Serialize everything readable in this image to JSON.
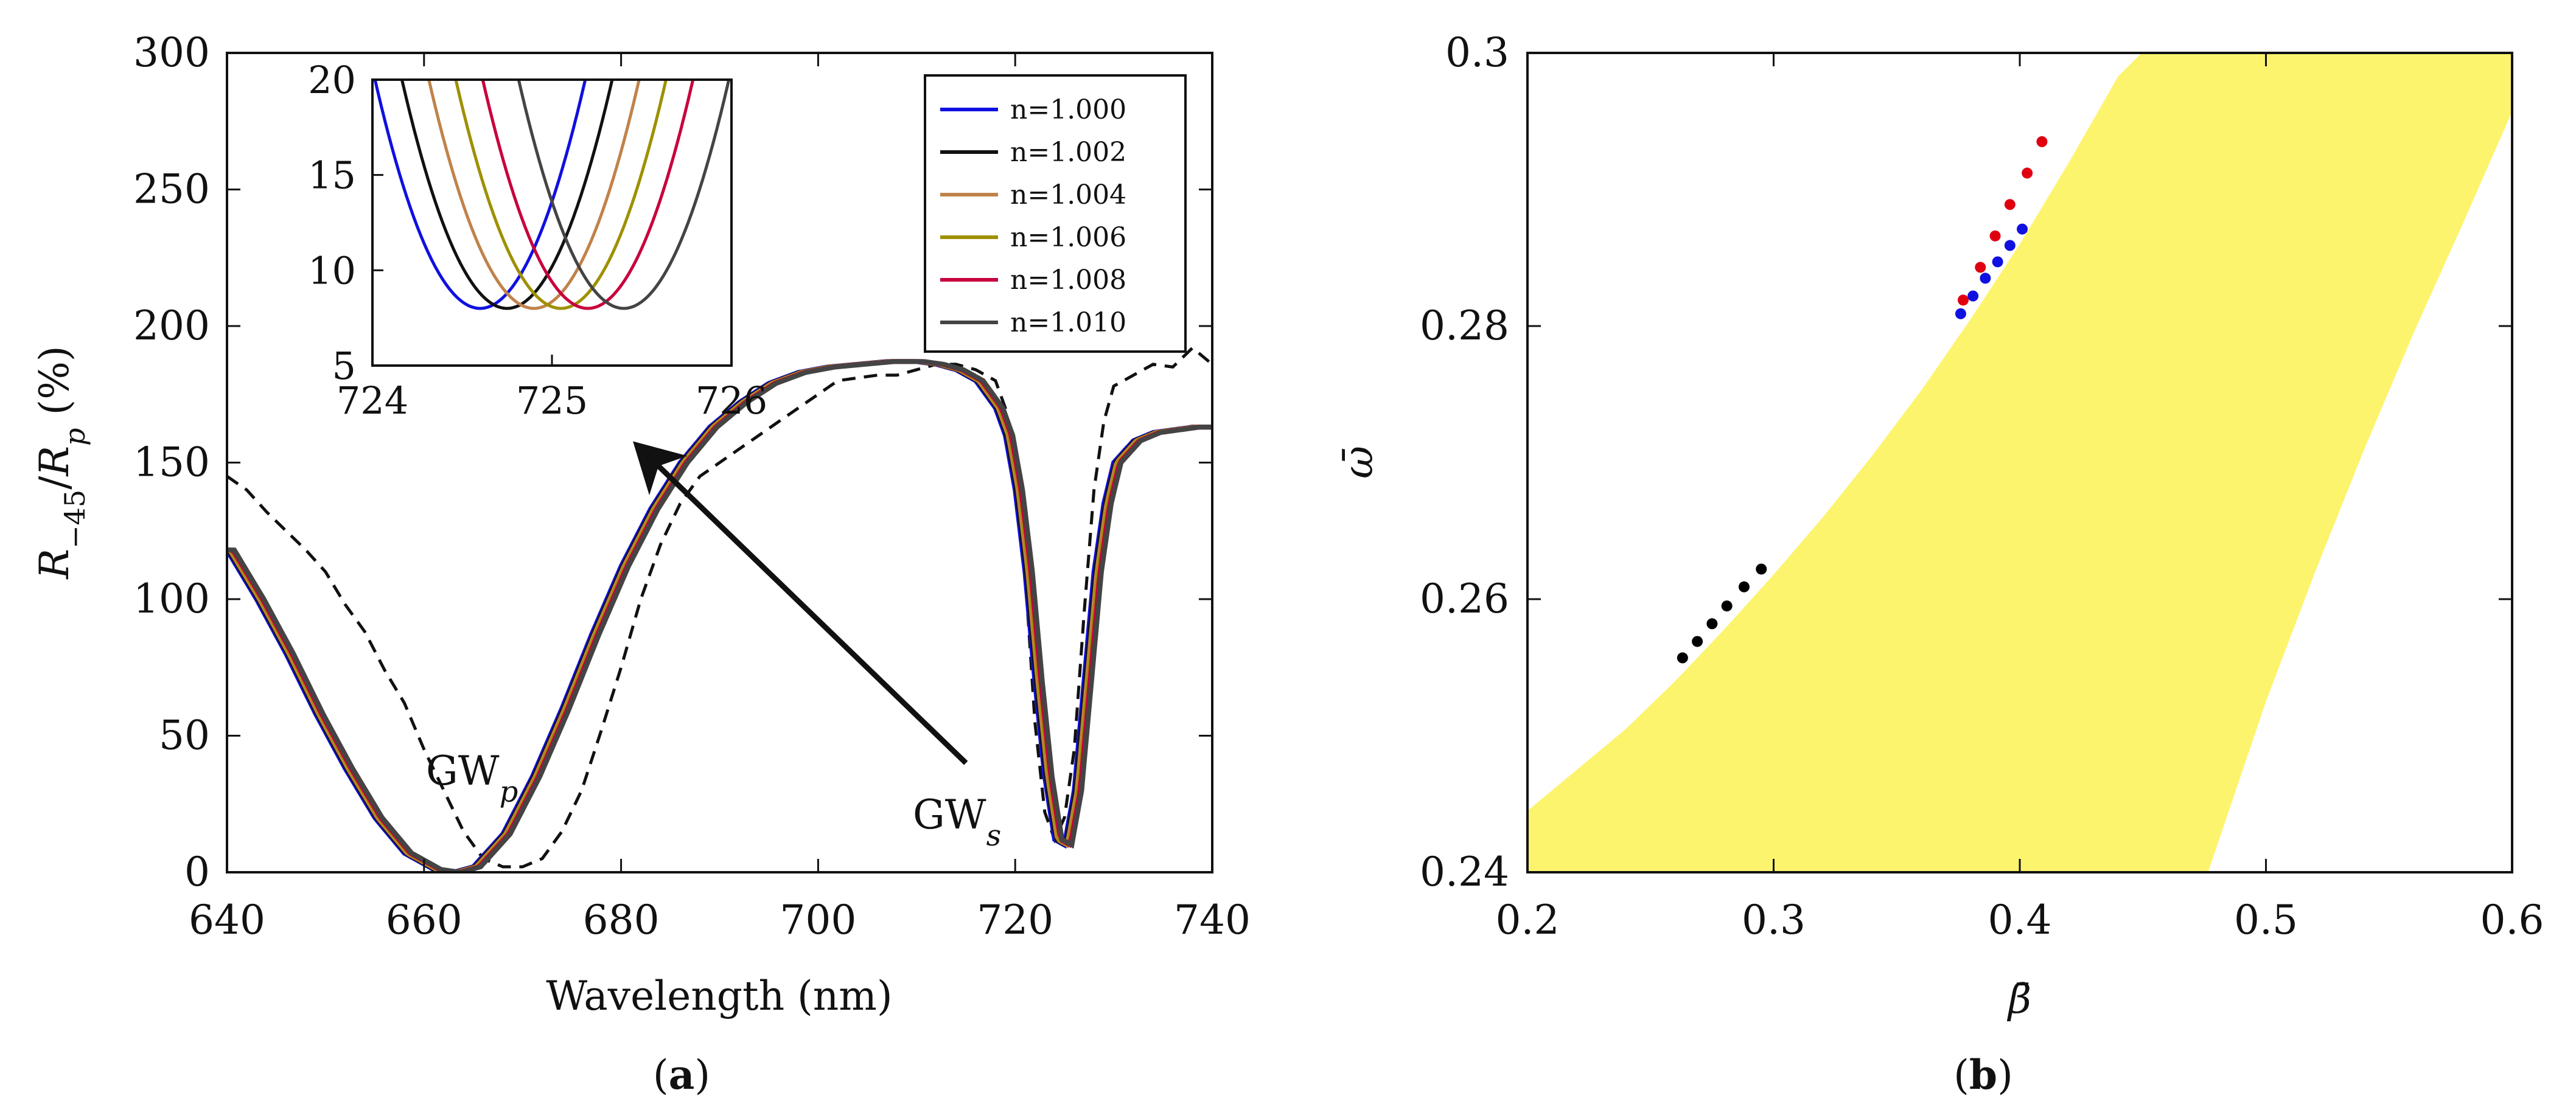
{
  "chart_data": [
    {
      "id": "a",
      "type": "line",
      "caption_letter": "a",
      "xlabel": "Wavelength (nm)",
      "ylabel": {
        "base": "R",
        "sub": "−45",
        "mid": "/",
        "base2": "R",
        "sub2": "p",
        "unit": " (%)"
      },
      "xlim": [
        640,
        740
      ],
      "ylim": [
        0,
        300
      ],
      "xticks": [
        "640",
        "660",
        "680",
        "700",
        "720",
        "740"
      ],
      "yticks": [
        "0",
        "50",
        "100",
        "150",
        "200",
        "250",
        "300"
      ],
      "x_tick_values": [
        640,
        660,
        680,
        700,
        720,
        740
      ],
      "y_tick_values": [
        0,
        50,
        100,
        150,
        200,
        250,
        300
      ],
      "annotations": {
        "gwp": {
          "base": "GW",
          "sub": "p"
        },
        "gws": {
          "base": "GW",
          "sub": "s"
        },
        "arrow": {
          "from": [
            715,
            40
          ],
          "to": [
            682,
            155
          ]
        }
      },
      "legend": [
        {
          "label": "n=1.000",
          "color": "#1010e0"
        },
        {
          "label": "n=1.002",
          "color": "#111111"
        },
        {
          "label": "n=1.004",
          "color": "#c0824a"
        },
        {
          "label": "n=1.006",
          "color": "#9e9000"
        },
        {
          "label": "n=1.008",
          "color": "#c8003c"
        },
        {
          "label": "n=1.010",
          "color": "#444444"
        }
      ],
      "series": [
        {
          "name": "n=1.000",
          "color": "#1010e0",
          "shift": 0.0
        },
        {
          "name": "n=1.002",
          "color": "#111111",
          "shift": 0.15
        },
        {
          "name": "n=1.004",
          "color": "#c0824a",
          "shift": 0.3
        },
        {
          "name": "n=1.006",
          "color": "#9e9000",
          "shift": 0.45
        },
        {
          "name": "n=1.008",
          "color": "#c8003c",
          "shift": 0.6
        },
        {
          "name": "n=1.010",
          "color": "#444444",
          "shift": 0.75
        }
      ],
      "base_curve": {
        "x": [
          640,
          643,
          646,
          649,
          652,
          655,
          658,
          661,
          663,
          665,
          668,
          671,
          674,
          677,
          680,
          683,
          686,
          689,
          692,
          695,
          698,
          701,
          704,
          707,
          710,
          712,
          714,
          716,
          718,
          719,
          720,
          721,
          722,
          723,
          724,
          725,
          726,
          727,
          728,
          729,
          730,
          732,
          734,
          736,
          738,
          740
        ],
        "y": [
          118,
          100,
          80,
          58,
          38,
          20,
          7,
          1,
          0,
          2,
          14,
          35,
          60,
          87,
          112,
          133,
          150,
          163,
          172,
          179,
          183,
          185,
          186,
          187,
          187,
          186,
          184,
          180,
          170,
          160,
          140,
          110,
          70,
          35,
          12,
          10,
          30,
          70,
          110,
          135,
          150,
          158,
          161,
          162,
          163,
          163
        ]
      },
      "measured": {
        "x": [
          640,
          642,
          644,
          646,
          648,
          650,
          652,
          654,
          656,
          658,
          660,
          662,
          664,
          666,
          668,
          670,
          672,
          674,
          676,
          678,
          680,
          682,
          684,
          686,
          688,
          690,
          692,
          694,
          696,
          698,
          700,
          702,
          704,
          706,
          708,
          710,
          712,
          714,
          716,
          718,
          719,
          720,
          721,
          722,
          723,
          724,
          725,
          726,
          727,
          728,
          729,
          730,
          732,
          734,
          736,
          738,
          740
        ],
        "y": [
          145,
          140,
          132,
          125,
          118,
          110,
          98,
          88,
          74,
          62,
          45,
          30,
          15,
          5,
          2,
          2,
          5,
          15,
          30,
          52,
          75,
          100,
          120,
          135,
          145,
          150,
          155,
          160,
          165,
          170,
          175,
          180,
          181,
          182,
          182,
          184,
          186,
          186,
          184,
          180,
          170,
          150,
          110,
          55,
          22,
          12,
          20,
          45,
          95,
          140,
          165,
          178,
          182,
          186,
          185,
          192,
          186
        ]
      },
      "inset": {
        "xlim": [
          724,
          726
        ],
        "ylim": [
          5,
          20
        ],
        "xticks": [
          "724",
          "725",
          "726"
        ],
        "yticks": [
          "5",
          "10",
          "15",
          "20"
        ],
        "x_tick_values": [
          724,
          725,
          726
        ],
        "y_tick_values": [
          5,
          10,
          15,
          20
        ],
        "minima": [
          724.6,
          724.75,
          724.9,
          725.05,
          725.2,
          725.4
        ],
        "min_value": 8,
        "curvature": 35
      }
    },
    {
      "id": "b",
      "type": "scatter",
      "caption_letter": "b",
      "xlabel": "β̄",
      "ylabel": "ω̄",
      "xlim": [
        0.2,
        0.6
      ],
      "ylim": [
        0.24,
        0.3
      ],
      "xticks": [
        "0.2",
        "0.3",
        "0.4",
        "0.5",
        "0.6"
      ],
      "yticks": [
        "0.24",
        "0.26",
        "0.28",
        "0.3"
      ],
      "x_tick_values": [
        0.2,
        0.3,
        0.4,
        0.5,
        0.6
      ],
      "y_tick_values": [
        0.24,
        0.26,
        0.28,
        0.3
      ],
      "band_color": "#fdf46e",
      "band_polygon": [
        [
          0.2,
          0.2445
        ],
        [
          0.22,
          0.2475
        ],
        [
          0.24,
          0.2505
        ],
        [
          0.26,
          0.254
        ],
        [
          0.28,
          0.2578
        ],
        [
          0.3,
          0.2618
        ],
        [
          0.32,
          0.266
        ],
        [
          0.34,
          0.2705
        ],
        [
          0.36,
          0.2753
        ],
        [
          0.38,
          0.2805
        ],
        [
          0.4,
          0.286
        ],
        [
          0.42,
          0.292
        ],
        [
          0.44,
          0.2983
        ],
        [
          0.4495,
          0.3
        ],
        [
          0.6,
          0.3
        ],
        [
          0.6,
          0.2957
        ],
        [
          0.58,
          0.2875
        ],
        [
          0.56,
          0.2795
        ],
        [
          0.54,
          0.271
        ],
        [
          0.52,
          0.262
        ],
        [
          0.5,
          0.2525
        ],
        [
          0.4765,
          0.24
        ],
        [
          0.2,
          0.24
        ]
      ],
      "series": [
        {
          "name": "black",
          "color": "#000000",
          "x": [
            0.263,
            0.269,
            0.275,
            0.281,
            0.288,
            0.295
          ],
          "y": [
            0.2557,
            0.2569,
            0.2582,
            0.2595,
            0.2609,
            0.2622
          ]
        },
        {
          "name": "blue",
          "color": "#1010e0",
          "x": [
            0.376,
            0.381,
            0.386,
            0.391,
            0.396,
            0.401
          ],
          "y": [
            0.2809,
            0.2822,
            0.2835,
            0.2847,
            0.2859,
            0.2871
          ]
        },
        {
          "name": "red",
          "color": "#e00010",
          "x": [
            0.377,
            0.384,
            0.39,
            0.396,
            0.403,
            0.409
          ],
          "y": [
            0.2819,
            0.2843,
            0.2866,
            0.2889,
            0.2912,
            0.2935
          ]
        }
      ]
    }
  ]
}
